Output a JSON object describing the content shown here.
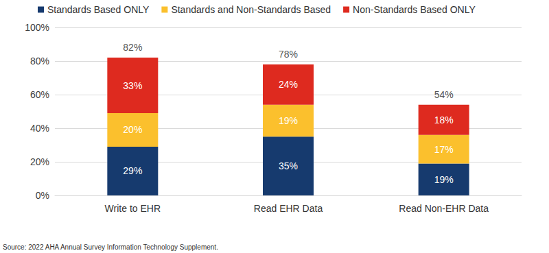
{
  "chart_data": {
    "type": "bar",
    "categories": [
      "Write to EHR",
      "Read EHR Data",
      "Read Non-EHR Data"
    ],
    "series": [
      {
        "name": "Standards Based ONLY",
        "color": "#163a6e",
        "values": [
          29,
          35,
          19
        ],
        "value_labels": [
          "29%",
          "35%",
          "19%"
        ]
      },
      {
        "name": "Standards and Non-Standards Based",
        "color": "#fbc02d",
        "values": [
          20,
          19,
          17
        ],
        "value_labels": [
          "20%",
          "19%",
          "17%"
        ]
      },
      {
        "name": "Non-Standards Based ONLY",
        "color": "#de2a1f",
        "values": [
          33,
          24,
          18
        ],
        "value_labels": [
          "33%",
          "24%",
          "18%"
        ]
      }
    ],
    "totals": [
      82,
      78,
      54
    ],
    "total_labels": [
      "82%",
      "78%",
      "54%"
    ],
    "ylim": [
      0,
      100
    ],
    "yticks": [
      {
        "value": 0,
        "label": "0%"
      },
      {
        "value": 20,
        "label": "20%"
      },
      {
        "value": 40,
        "label": "40%"
      },
      {
        "value": 60,
        "label": "60%"
      },
      {
        "value": 80,
        "label": "80%"
      },
      {
        "value": 100,
        "label": "100%"
      }
    ],
    "stacked": true,
    "data_labels": true,
    "grid": true,
    "legend": "top-left",
    "source": "Source: 2022 AHA Annual Survey Information Technology Supplement."
  }
}
